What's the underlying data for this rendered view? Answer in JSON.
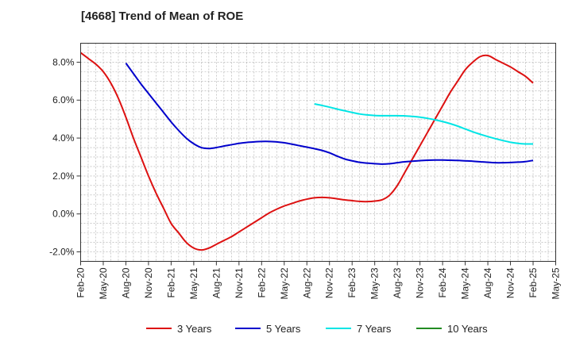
{
  "chart_data": {
    "type": "line",
    "title": "[4668]  Trend of Mean of ROE",
    "xlabel": "",
    "ylabel": "",
    "x_tick_labels": [
      "Feb-20",
      "May-20",
      "Aug-20",
      "Nov-20",
      "Feb-21",
      "May-21",
      "Aug-21",
      "Nov-21",
      "Feb-22",
      "May-22",
      "Aug-22",
      "Nov-22",
      "Feb-23",
      "May-23",
      "Aug-23",
      "Nov-23",
      "Feb-24",
      "May-24",
      "Aug-24",
      "Nov-24",
      "Feb-25",
      "May-25"
    ],
    "x_range_months": [
      0,
      63
    ],
    "y_tick_values": [
      -2.0,
      0.0,
      2.0,
      4.0,
      6.0,
      8.0
    ],
    "y_tick_labels": [
      "-2.0%",
      "0.0%",
      "2.0%",
      "4.0%",
      "6.0%",
      "8.0%"
    ],
    "ylim": [
      -2.5,
      9.0
    ],
    "grid": true,
    "legend_position": "bottom",
    "series": [
      {
        "name": "3 Years",
        "color": "#dd1111",
        "x": [
          "Feb-20",
          "Mar-20",
          "Apr-20",
          "May-20",
          "Jun-20",
          "Jul-20",
          "Aug-20",
          "Sep-20",
          "Oct-20",
          "Nov-20",
          "Dec-20",
          "Jan-21",
          "Feb-21",
          "Mar-21",
          "Apr-21",
          "May-21",
          "Jun-21",
          "Jul-21",
          "Aug-21",
          "Sep-21",
          "Oct-21",
          "Nov-21",
          "Dec-21",
          "Jan-22",
          "Feb-22",
          "Mar-22",
          "Apr-22",
          "May-22",
          "Jun-22",
          "Jul-22",
          "Aug-22",
          "Sep-22",
          "Oct-22",
          "Nov-22",
          "Dec-22",
          "Jan-23",
          "Feb-23",
          "Mar-23",
          "Apr-23",
          "May-23",
          "Jun-23",
          "Jul-23",
          "Aug-23",
          "Sep-23",
          "Oct-23",
          "Nov-23",
          "Dec-23",
          "Jan-24",
          "Feb-24",
          "Mar-24",
          "Apr-24",
          "May-24",
          "Jun-24",
          "Jul-24",
          "Aug-24",
          "Sep-24",
          "Oct-24",
          "Nov-24",
          "Dec-24",
          "Jan-25",
          "Feb-25"
        ],
        "values": [
          8.5,
          8.2,
          7.9,
          7.5,
          6.9,
          6.1,
          5.1,
          4.0,
          3.0,
          2.0,
          1.1,
          0.3,
          -0.5,
          -1.0,
          -1.5,
          -1.8,
          -1.9,
          -1.8,
          -1.6,
          -1.4,
          -1.2,
          -0.95,
          -0.7,
          -0.45,
          -0.2,
          0.05,
          0.25,
          0.42,
          0.55,
          0.68,
          0.78,
          0.85,
          0.87,
          0.85,
          0.8,
          0.74,
          0.7,
          0.66,
          0.65,
          0.68,
          0.75,
          1.0,
          1.5,
          2.2,
          2.9,
          3.6,
          4.3,
          5.0,
          5.7,
          6.4,
          7.0,
          7.6,
          8.0,
          8.3,
          8.35,
          8.15,
          7.95,
          7.75,
          7.5,
          7.25,
          6.9
        ]
      },
      {
        "name": "5 Years",
        "color": "#0000cc",
        "x": [
          "Feb-20",
          "Mar-20",
          "Apr-20",
          "May-20",
          "Jun-20",
          "Jul-20",
          "Aug-20",
          "Sep-20",
          "Oct-20",
          "Nov-20",
          "Dec-20",
          "Jan-21",
          "Feb-21",
          "Mar-21",
          "Apr-21",
          "May-21",
          "Jun-21",
          "Jul-21",
          "Aug-21",
          "Sep-21",
          "Oct-21",
          "Nov-21",
          "Dec-21",
          "Jan-22",
          "Feb-22",
          "Mar-22",
          "Apr-22",
          "May-22",
          "Jun-22",
          "Jul-22",
          "Aug-22",
          "Sep-22",
          "Oct-22",
          "Nov-22",
          "Dec-22",
          "Jan-23",
          "Feb-23",
          "Mar-23",
          "Apr-23",
          "May-23",
          "Jun-23",
          "Jul-23",
          "Aug-23",
          "Sep-23",
          "Oct-23",
          "Nov-23",
          "Dec-23",
          "Jan-24",
          "Feb-24",
          "Mar-24",
          "Apr-24",
          "May-24",
          "Jun-24",
          "Jul-24",
          "Aug-24",
          "Sep-24",
          "Oct-24",
          "Nov-24",
          "Dec-24",
          "Jan-25",
          "Feb-25"
        ],
        "values": [
          null,
          null,
          null,
          null,
          null,
          null,
          7.95,
          7.4,
          6.85,
          6.35,
          5.85,
          5.35,
          4.85,
          4.4,
          4.0,
          3.7,
          3.5,
          3.45,
          3.5,
          3.58,
          3.65,
          3.72,
          3.77,
          3.8,
          3.82,
          3.82,
          3.8,
          3.75,
          3.68,
          3.6,
          3.52,
          3.44,
          3.35,
          3.22,
          3.05,
          2.9,
          2.8,
          2.72,
          2.68,
          2.65,
          2.63,
          2.65,
          2.7,
          2.75,
          2.78,
          2.81,
          2.83,
          2.84,
          2.84,
          2.83,
          2.82,
          2.8,
          2.78,
          2.75,
          2.72,
          2.7,
          2.7,
          2.71,
          2.73,
          2.76,
          2.82
        ]
      },
      {
        "name": "7 Years",
        "color": "#00e5e5",
        "x": [
          "Feb-20",
          "Mar-20",
          "Apr-20",
          "May-20",
          "Jun-20",
          "Jul-20",
          "Aug-20",
          "Sep-20",
          "Oct-20",
          "Nov-20",
          "Dec-20",
          "Jan-21",
          "Feb-21",
          "Mar-21",
          "Apr-21",
          "May-21",
          "Jun-21",
          "Jul-21",
          "Aug-21",
          "Sep-21",
          "Oct-21",
          "Nov-21",
          "Dec-21",
          "Jan-22",
          "Feb-22",
          "Mar-22",
          "Apr-22",
          "May-22",
          "Jun-22",
          "Jul-22",
          "Aug-22",
          "Sep-22",
          "Oct-22",
          "Nov-22",
          "Dec-22",
          "Jan-23",
          "Feb-23",
          "Mar-23",
          "Apr-23",
          "May-23",
          "Jun-23",
          "Jul-23",
          "Aug-23",
          "Sep-23",
          "Oct-23",
          "Nov-23",
          "Dec-23",
          "Jan-24",
          "Feb-24",
          "Mar-24",
          "Apr-24",
          "May-24",
          "Jun-24",
          "Jul-24",
          "Aug-24",
          "Sep-24",
          "Oct-24",
          "Nov-24",
          "Dec-24",
          "Jan-25",
          "Feb-25"
        ],
        "values": [
          null,
          null,
          null,
          null,
          null,
          null,
          null,
          null,
          null,
          null,
          null,
          null,
          null,
          null,
          null,
          null,
          null,
          null,
          null,
          null,
          null,
          null,
          null,
          null,
          null,
          null,
          null,
          null,
          null,
          null,
          null,
          5.8,
          5.72,
          5.63,
          5.53,
          5.44,
          5.35,
          5.27,
          5.22,
          5.19,
          5.18,
          5.18,
          5.18,
          5.17,
          5.14,
          5.1,
          5.04,
          4.96,
          4.87,
          4.76,
          4.63,
          4.48,
          4.33,
          4.2,
          4.08,
          3.97,
          3.87,
          3.78,
          3.72,
          3.69,
          3.69
        ]
      },
      {
        "name": "10 Years",
        "color": "#228B22",
        "x": [],
        "values": []
      }
    ]
  }
}
